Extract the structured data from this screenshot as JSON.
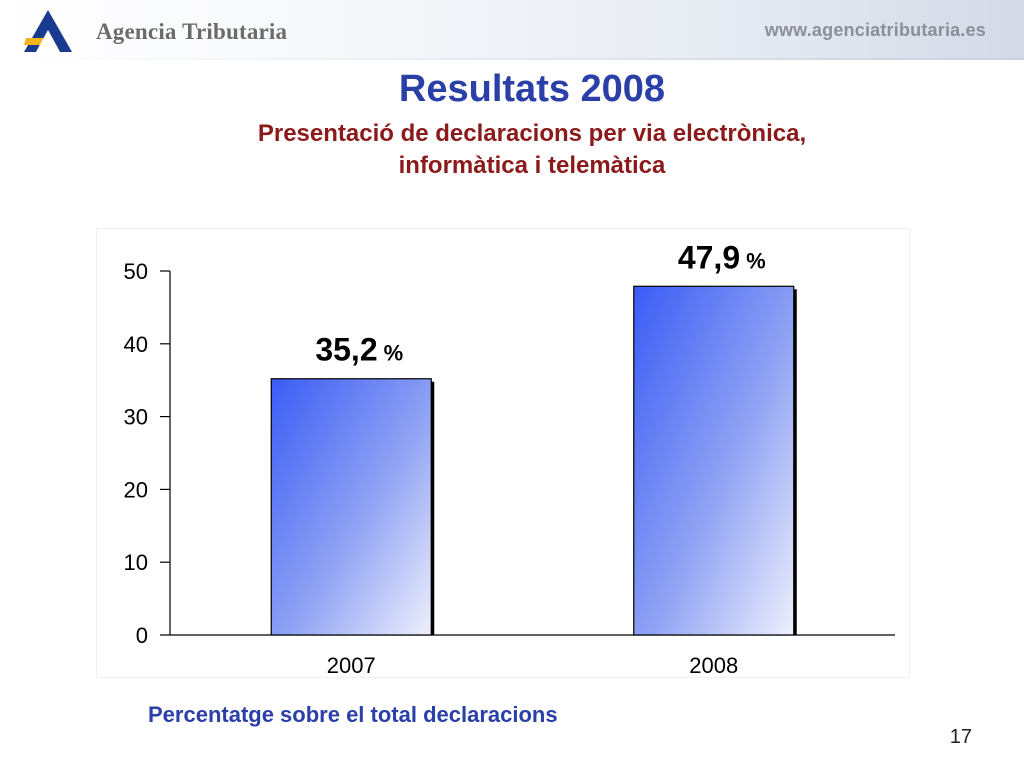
{
  "header": {
    "brand": "Agencia Tributaria",
    "website": "www.agenciatributaria.es",
    "logo_icon": "agencia-tributaria-logo"
  },
  "slide": {
    "title": "Resultats 2008",
    "subtitle_line1": "Presentació de declaracions per via electrònica,",
    "subtitle_line2": "informàtica i telemàtica",
    "caption": "Percentatge sobre el total declaracions",
    "page_number": "17"
  },
  "colors": {
    "title": "#2a3fa8",
    "subtitle": "#8b1a1a",
    "bar_dark": "#3a5cf5",
    "bar_light": "#e6e9fb"
  },
  "chart_data": {
    "type": "bar",
    "categories": [
      "2007",
      "2008"
    ],
    "values": [
      35.2,
      47.9
    ],
    "data_labels": [
      "35,2",
      "47,9"
    ],
    "data_label_unit": "%",
    "yticks": [
      "0",
      "10",
      "20",
      "30",
      "40",
      "50"
    ],
    "ylim": [
      0,
      50
    ],
    "grid": false,
    "legend": "none"
  }
}
